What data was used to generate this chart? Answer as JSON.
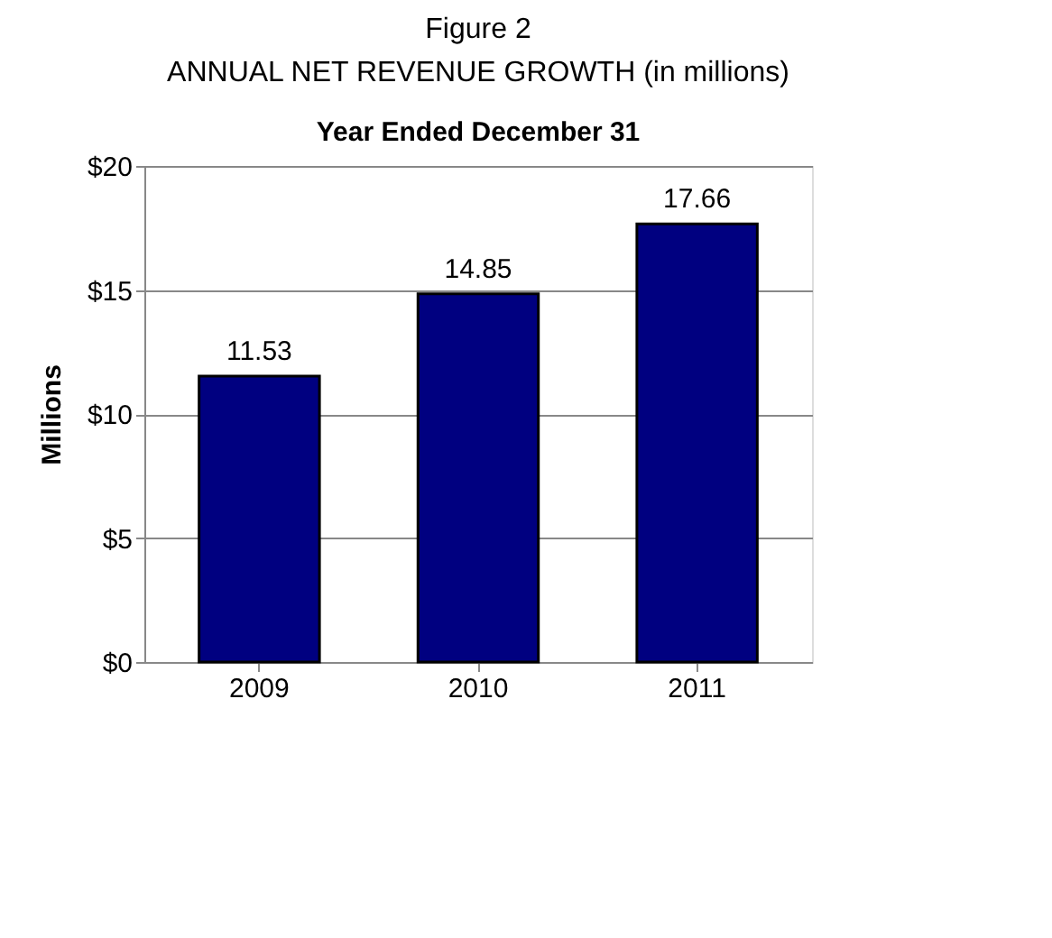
{
  "chart_data": {
    "type": "bar",
    "title": "Figure 2\nANNUAL NET REVENUE GROWTH (in millions)",
    "subtitle": "Year Ended December 31",
    "ylabel": "Millions",
    "categories": [
      "2009",
      "2010",
      "2011"
    ],
    "values": [
      11.53,
      14.85,
      17.66
    ],
    "color": "#000080",
    "ylim": [
      0,
      20
    ],
    "yticks": [
      {
        "value": 0,
        "label": "$0"
      },
      {
        "value": 5,
        "label": "$5"
      },
      {
        "value": 10,
        "label": "$10"
      },
      {
        "value": 15,
        "label": "$15"
      },
      {
        "value": 20,
        "label": "$20"
      }
    ],
    "grid": "y",
    "data_labels": true
  }
}
